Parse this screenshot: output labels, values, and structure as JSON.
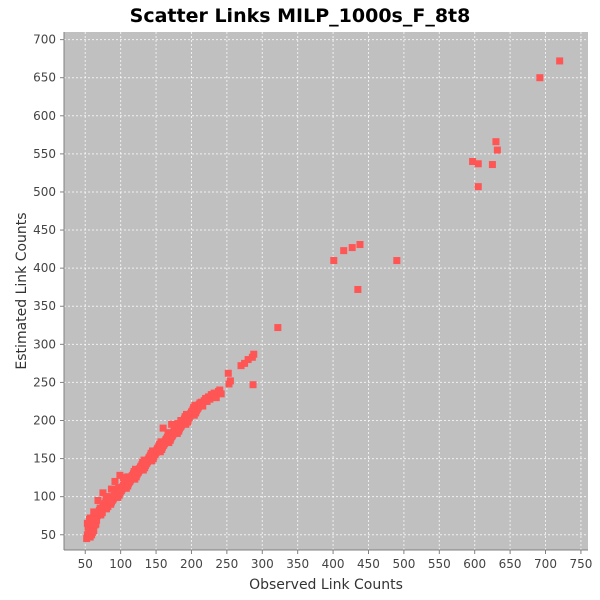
{
  "chart_data": {
    "type": "scatter",
    "title": "Scatter Links MILP_1000s_F_8t8",
    "xlabel": "Observed Link Counts",
    "ylabel": "Estimated Link Counts",
    "xlim": [
      20,
      760
    ],
    "ylim": [
      30,
      710
    ],
    "xticks": [
      50,
      100,
      150,
      200,
      250,
      300,
      350,
      400,
      450,
      500,
      550,
      600,
      650,
      700,
      750
    ],
    "yticks": [
      50,
      100,
      150,
      200,
      250,
      300,
      350,
      400,
      450,
      500,
      550,
      600,
      650,
      700
    ],
    "grid": true,
    "colors": {
      "plot_bg": "#c0c0c0",
      "marker": "#ff5555",
      "grid": "#ffffff"
    },
    "series": [
      {
        "x": [
          52,
          53,
          54,
          55,
          56,
          54,
          57,
          58,
          60,
          55,
          53,
          56,
          59,
          61,
          62,
          64,
          58,
          57,
          60,
          63,
          65,
          67,
          62,
          66,
          68,
          70,
          72,
          69,
          71,
          74,
          76,
          73,
          75,
          78,
          80,
          77,
          79,
          82,
          85,
          83,
          86,
          88,
          84,
          87,
          90,
          92,
          89,
          91,
          94,
          96,
          93,
          95,
          98,
          100,
          97,
          99,
          102,
          104,
          101,
          103,
          106,
          108,
          105,
          107,
          110,
          112,
          109,
          111,
          114,
          116,
          113,
          115,
          118,
          120,
          117,
          119,
          122,
          124,
          121,
          123,
          126,
          128,
          125,
          127,
          130,
          132,
          129,
          131,
          134,
          136,
          133,
          135,
          138,
          140,
          137,
          139,
          142,
          144,
          141,
          143,
          146,
          148,
          145,
          147,
          150,
          152,
          149,
          151,
          154,
          156,
          153,
          155,
          158,
          160,
          157,
          159,
          162,
          164,
          161,
          163,
          166,
          168,
          165,
          167,
          170,
          172,
          169,
          171,
          174,
          176,
          173,
          175,
          178,
          180,
          177,
          179,
          182,
          184,
          181,
          183,
          186,
          188,
          185,
          187,
          190,
          192,
          189,
          191,
          194,
          196,
          193,
          195,
          198,
          200,
          197,
          199,
          202,
          204,
          201,
          203,
          206,
          208,
          205,
          207,
          210,
          212,
          209,
          211,
          214,
          216,
          218,
          220,
          222,
          224,
          226,
          228,
          230,
          232,
          235,
          238,
          240,
          242,
          56,
          62,
          68,
          75,
          80,
          87,
          92,
          99,
          104,
          110,
          160,
          172,
          185,
          195,
          252,
          253,
          270,
          275,
          280,
          286,
          288,
          255,
          287,
          322,
          401,
          415,
          427,
          438,
          435,
          490,
          597,
          605,
          625,
          630,
          632,
          605,
          692,
          720
        ],
        "y": [
          45,
          50,
          48,
          55,
          52,
          60,
          47,
          58,
          53,
          62,
          65,
          57,
          50,
          60,
          55,
          63,
          68,
          72,
          66,
          70,
          64,
          75,
          73,
          69,
          78,
          82,
          76,
          80,
          85,
          79,
          88,
          83,
          86,
          91,
          84,
          89,
          94,
          87,
          92,
          97,
          90,
          95,
          100,
          93,
          98,
          103,
          96,
          101,
          106,
          99,
          104,
          109,
          102,
          107,
          112,
          105,
          110,
          115,
          108,
          113,
          118,
          111,
          116,
          121,
          114,
          119,
          124,
          117,
          122,
          127,
          120,
          125,
          130,
          123,
          128,
          133,
          126,
          131,
          136,
          129,
          134,
          139,
          132,
          137,
          142,
          135,
          140,
          145,
          138,
          143,
          148,
          141,
          146,
          151,
          144,
          149,
          154,
          147,
          152,
          157,
          150,
          155,
          160,
          153,
          158,
          163,
          156,
          161,
          166,
          159,
          164,
          169,
          162,
          167,
          172,
          165,
          170,
          175,
          168,
          173,
          178,
          171,
          176,
          181,
          174,
          179,
          184,
          177,
          182,
          187,
          180,
          185,
          190,
          183,
          188,
          193,
          186,
          191,
          196,
          189,
          194,
          199,
          192,
          197,
          202,
          195,
          200,
          205,
          198,
          203,
          208,
          201,
          206,
          211,
          204,
          209,
          214,
          207,
          212,
          217,
          210,
          215,
          220,
          213,
          218,
          223,
          216,
          221,
          224,
          219,
          226,
          229,
          225,
          231,
          228,
          234,
          233,
          236,
          230,
          238,
          240,
          235,
          70,
          80,
          95,
          105,
          100,
          110,
          120,
          128,
          125,
          126,
          190,
          195,
          200,
          198,
          262,
          248,
          272,
          275,
          280,
          283,
          287,
          252,
          247,
          322,
          410,
          423,
          427,
          431,
          372,
          410,
          540,
          537,
          536,
          566,
          555,
          507,
          650,
          672
        ]
      }
    ]
  }
}
